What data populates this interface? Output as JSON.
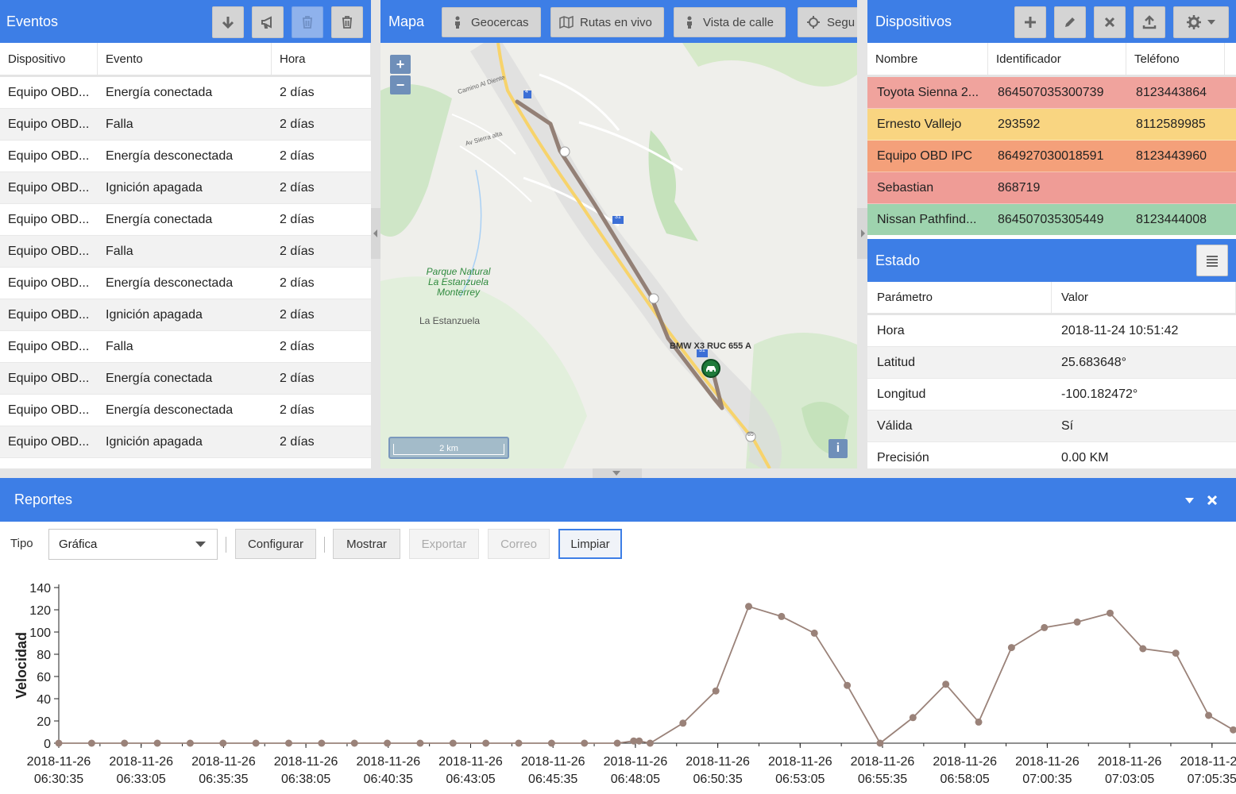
{
  "eventos": {
    "title": "Eventos",
    "columns": [
      "Dispositivo",
      "Evento",
      "Hora"
    ],
    "rows": [
      [
        "Equipo OBD...",
        "Energía conectada",
        "2 días"
      ],
      [
        "Equipo OBD...",
        "Falla",
        "2 días"
      ],
      [
        "Equipo OBD...",
        "Energía desconectada",
        "2 días"
      ],
      [
        "Equipo OBD...",
        "Ignición apagada",
        "2 días"
      ],
      [
        "Equipo OBD...",
        "Energía conectada",
        "2 días"
      ],
      [
        "Equipo OBD...",
        "Falla",
        "2 días"
      ],
      [
        "Equipo OBD...",
        "Energía desconectada",
        "2 días"
      ],
      [
        "Equipo OBD...",
        "Ignición apagada",
        "2 días"
      ],
      [
        "Equipo OBD...",
        "Falla",
        "2 días"
      ],
      [
        "Equipo OBD...",
        "Energía conectada",
        "2 días"
      ],
      [
        "Equipo OBD...",
        "Energía desconectada",
        "2 días"
      ],
      [
        "Equipo OBD...",
        "Ignición apagada",
        "2 días"
      ]
    ]
  },
  "mapa": {
    "title": "Mapa",
    "buttons": [
      "Geocercas",
      "Rutas en vivo",
      "Vista de calle",
      "Segu"
    ],
    "zoom_in": "+",
    "zoom_out": "−",
    "park_label": "Parque Natural\nLa Estanzuela\nMonterrey",
    "town_label": "La Estanzuela",
    "road1": "Camino Al Diente",
    "road2": "Av Sierra alta",
    "vehicle_label": "BMW X3 RUC 655 A",
    "scale": "2 km",
    "info": "i",
    "shields": [
      "4",
      "31",
      "31",
      "85"
    ]
  },
  "dispositivos": {
    "title": "Dispositivos",
    "columns": [
      "Nombre",
      "Identificador",
      "Teléfono"
    ],
    "rows": [
      {
        "nombre": "Toyota Sienna 2...",
        "id": "864507035300739",
        "tel": "8123443864",
        "color": "#f0a39d"
      },
      {
        "nombre": "Ernesto Vallejo",
        "id": "293592",
        "tel": "8112589985",
        "color": "#f9d581"
      },
      {
        "nombre": "Equipo OBD IPC",
        "id": "864927030018591",
        "tel": "8123443960",
        "color": "#f4a07a"
      },
      {
        "nombre": "Sebastian",
        "id": "868719",
        "tel": "",
        "color": "#ef9c96"
      },
      {
        "nombre": "Nissan Pathfind...",
        "id": "864507035305449",
        "tel": "8123444008",
        "color": "#9ed3ae"
      }
    ]
  },
  "estado": {
    "title": "Estado",
    "columns": [
      "Parámetro",
      "Valor"
    ],
    "rows": [
      [
        "Hora",
        "2018-11-24 10:51:42"
      ],
      [
        "Latitud",
        "25.683648°"
      ],
      [
        "Longitud",
        "-100.182472°"
      ],
      [
        "Válida",
        "Sí"
      ],
      [
        "Precisión",
        "0.00 KM"
      ]
    ]
  },
  "reportes": {
    "title": "Reportes",
    "tipo_label": "Tipo",
    "tipo_value": "Gráfica",
    "buttons": {
      "configurar": "Configurar",
      "mostrar": "Mostrar",
      "exportar": "Exportar",
      "correo": "Correo",
      "limpiar": "Limpiar"
    }
  },
  "chart_data": {
    "type": "line",
    "ylabel": "Velocidad",
    "ylim": [
      0,
      140
    ],
    "yticks": [
      0,
      20,
      40,
      60,
      80,
      100,
      120,
      140
    ],
    "xtick_labels": [
      [
        "2018-11-26",
        "06:30:35"
      ],
      [
        "2018-11-26",
        "06:33:05"
      ],
      [
        "2018-11-26",
        "06:35:35"
      ],
      [
        "2018-11-26",
        "06:38:05"
      ],
      [
        "2018-11-26",
        "06:40:35"
      ],
      [
        "2018-11-26",
        "06:43:05"
      ],
      [
        "2018-11-26",
        "06:45:35"
      ],
      [
        "2018-11-26",
        "06:48:05"
      ],
      [
        "2018-11-26",
        "06:50:35"
      ],
      [
        "2018-11-26",
        "06:53:05"
      ],
      [
        "2018-11-26",
        "06:55:35"
      ],
      [
        "2018-11-26",
        "06:58:05"
      ],
      [
        "2018-11-26",
        "07:00:35"
      ],
      [
        "2018-11-26",
        "07:03:05"
      ],
      [
        "2018-11-26",
        "07:05:35"
      ]
    ],
    "line_color": "#9a8279",
    "series": [
      {
        "x": [
          "06:30:35",
          "06:31:35",
          "06:32:35",
          "06:33:35",
          "06:34:35",
          "06:35:35",
          "06:36:35",
          "06:37:35",
          "06:38:35",
          "06:39:35",
          "06:40:35",
          "06:41:35",
          "06:42:35",
          "06:43:35",
          "06:44:35",
          "06:45:35",
          "06:46:35",
          "06:47:35",
          "06:48:05",
          "06:48:15",
          "06:48:35",
          "06:49:35",
          "06:50:35",
          "06:51:35",
          "06:52:35",
          "06:53:35",
          "06:54:35",
          "06:55:35",
          "06:56:35",
          "06:57:35",
          "06:58:35",
          "06:59:35",
          "07:00:35",
          "07:01:35",
          "07:02:35",
          "07:03:35",
          "07:04:35",
          "07:05:35",
          "07:06:20"
        ],
        "values": [
          0,
          0,
          0,
          0,
          0,
          0,
          0,
          0,
          0,
          0,
          0,
          0,
          0,
          0,
          0,
          0,
          0,
          0,
          2,
          2,
          0,
          18,
          47,
          123,
          114,
          99,
          52,
          0,
          23,
          53,
          19,
          86,
          104,
          109,
          117,
          85,
          81,
          25,
          12
        ]
      }
    ]
  }
}
